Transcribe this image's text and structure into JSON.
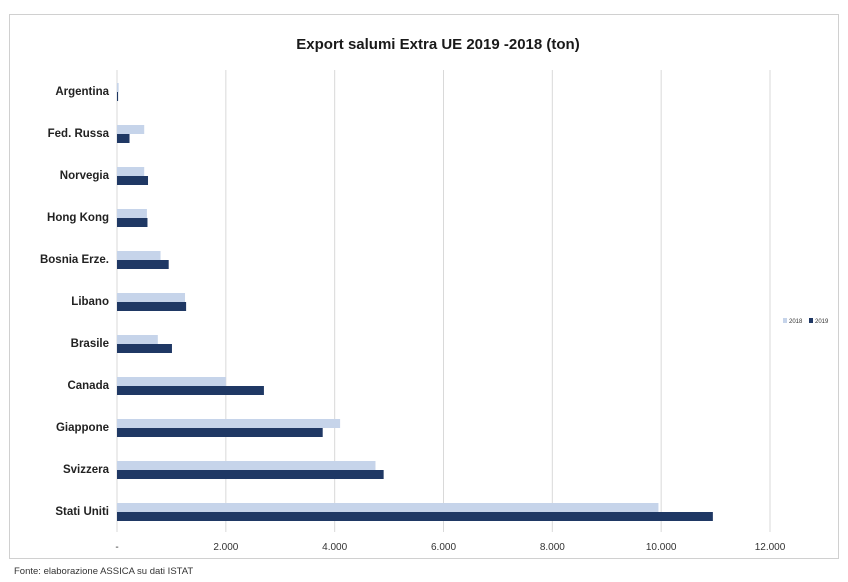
{
  "chart_data": {
    "type": "bar",
    "orientation": "horizontal",
    "title": "Export salumi Extra UE 2019 -2018  (ton)",
    "categories": [
      "Argentina",
      "Fed. Russa",
      "Norvegia",
      "Hong Kong",
      "Bosnia Erze.",
      "Libano",
      "Brasile",
      "Canada",
      "Giappone",
      "Svizzera",
      "Stati Uniti"
    ],
    "series": [
      {
        "name": "2018",
        "color": "#c6d4ea",
        "values": [
          30,
          500,
          500,
          550,
          800,
          1250,
          750,
          2000,
          4100,
          4750,
          9950
        ]
      },
      {
        "name": "2019",
        "color": "#1f3864",
        "values": [
          20,
          230,
          570,
          560,
          950,
          1270,
          1010,
          2700,
          3780,
          4900,
          10950
        ]
      }
    ],
    "xlim": [
      0,
      12000
    ],
    "xticks": [
      0,
      2000,
      4000,
      6000,
      8000,
      10000,
      12000
    ],
    "xtick_labels": [
      "-",
      "2.000",
      "4.000",
      "6.000",
      "8.000",
      "10.000",
      "12.000"
    ],
    "grid": "vertical",
    "legend": "right"
  },
  "source": "Fonte: elaborazione ASSICA su dati ISTAT"
}
